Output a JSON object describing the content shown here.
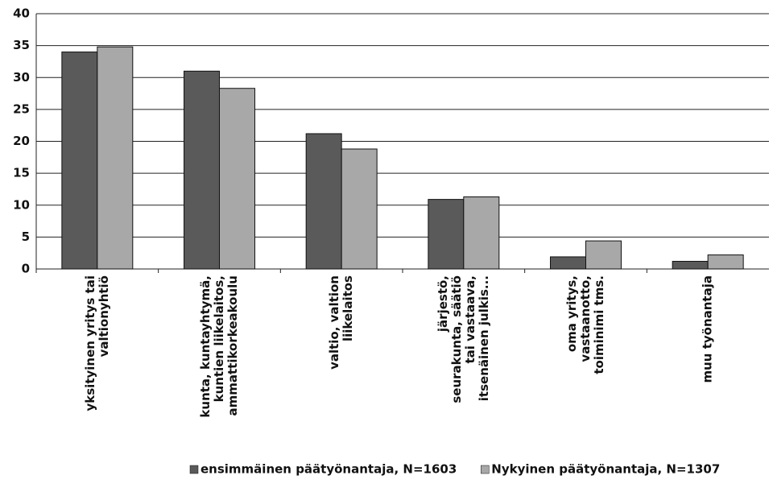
{
  "chart_data": {
    "type": "bar",
    "categories": [
      [
        "yksityinen yritys tai",
        "valtionyhtiö"
      ],
      [
        "kunta, kuntayhtymä,",
        "kuntien liikelaitos,",
        "ammattikorkeakoulu"
      ],
      [
        "valtio, valtion",
        "liikelaitos"
      ],
      [
        "järjestö,",
        "seurakunta, säätiö",
        "tai vastaava,",
        "itsenäinen julkis..."
      ],
      [
        "oma yritys,",
        "vastaanotto,",
        "toiminimi tms."
      ],
      [
        "muu työnantaja"
      ]
    ],
    "series": [
      {
        "name": "ensimmäinen päätyönantaja, N=1603",
        "color": "#5a5a5a",
        "values": [
          34,
          31,
          21.2,
          10.9,
          1.9,
          1.2
        ]
      },
      {
        "name": "Nykyinen päätyönantaja, N=1307",
        "color": "#a8a8a8",
        "values": [
          34.8,
          28.3,
          18.8,
          11.3,
          4.4,
          2.2
        ]
      }
    ],
    "ylim": [
      0,
      40
    ],
    "yticks": [
      0,
      5,
      10,
      15,
      20,
      25,
      30,
      35,
      40
    ],
    "grid": true,
    "legend": "bottom"
  }
}
